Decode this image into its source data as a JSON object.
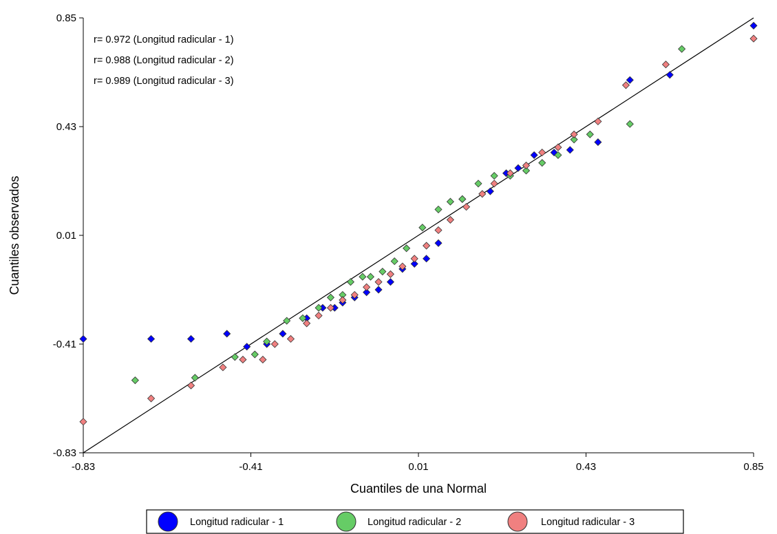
{
  "chart_data": {
    "type": "scatter",
    "xlabel": "Cuantiles de una Normal",
    "ylabel": "Cuantiles observados",
    "xlim": [
      -0.83,
      0.85
    ],
    "ylim": [
      -0.83,
      0.85
    ],
    "xticks": [
      "-0.83",
      "-0.41",
      "0.01",
      "0.43",
      "0.85"
    ],
    "yticks": [
      "-0.83",
      "-0.41",
      "0.01",
      "0.43",
      "0.85"
    ],
    "annotations": [
      "r= 0.972 (Longitud radicular - 1)",
      "r= 0.988 (Longitud radicular - 2)",
      "r= 0.989 (Longitud radicular - 3)"
    ],
    "legend_position": "bottom",
    "reference_line": {
      "x": [
        -0.83,
        0.85
      ],
      "y": [
        -0.83,
        0.85
      ],
      "color": "#000000"
    },
    "series": [
      {
        "name": "Longitud radicular - 1",
        "color": "#0000ff",
        "x": [
          -0.83,
          -0.66,
          -0.56,
          -0.47,
          -0.42,
          -0.37,
          -0.33,
          -0.27,
          -0.23,
          -0.2,
          -0.18,
          -0.15,
          -0.12,
          -0.09,
          -0.06,
          -0.03,
          0.0,
          0.03,
          0.06,
          0.12,
          0.19,
          0.23,
          0.26,
          0.3,
          0.35,
          0.39,
          0.46,
          0.54,
          0.64,
          0.85
        ],
        "y": [
          -0.39,
          -0.39,
          -0.39,
          -0.37,
          -0.42,
          -0.41,
          -0.37,
          -0.31,
          -0.27,
          -0.27,
          -0.25,
          -0.23,
          -0.21,
          -0.2,
          -0.17,
          -0.12,
          -0.1,
          -0.08,
          -0.02,
          0.15,
          0.18,
          0.25,
          0.27,
          0.32,
          0.33,
          0.34,
          0.37,
          0.61,
          0.63,
          0.82
        ]
      },
      {
        "name": "Longitud radicular - 2",
        "color": "#66cc66",
        "x": [
          -0.7,
          -0.55,
          -0.45,
          -0.4,
          -0.37,
          -0.32,
          -0.28,
          -0.24,
          -0.21,
          -0.18,
          -0.16,
          -0.13,
          -0.11,
          -0.08,
          -0.05,
          -0.02,
          0.02,
          0.06,
          0.09,
          0.12,
          0.16,
          0.2,
          0.24,
          0.28,
          0.32,
          0.36,
          0.4,
          0.44,
          0.54,
          0.67
        ],
        "y": [
          -0.55,
          -0.54,
          -0.46,
          -0.45,
          -0.4,
          -0.32,
          -0.31,
          -0.27,
          -0.23,
          -0.22,
          -0.17,
          -0.15,
          -0.15,
          -0.13,
          -0.09,
          -0.04,
          0.04,
          0.11,
          0.14,
          0.15,
          0.21,
          0.24,
          0.24,
          0.26,
          0.29,
          0.32,
          0.38,
          0.4,
          0.44,
          0.73
        ]
      },
      {
        "name": "Longitud radicular - 3",
        "color": "#f08080",
        "x": [
          -0.83,
          -0.66,
          -0.56,
          -0.48,
          -0.43,
          -0.38,
          -0.35,
          -0.31,
          -0.27,
          -0.24,
          -0.21,
          -0.18,
          -0.15,
          -0.12,
          -0.09,
          -0.06,
          -0.03,
          0.0,
          0.03,
          0.06,
          0.09,
          0.13,
          0.17,
          0.2,
          0.24,
          0.28,
          0.32,
          0.36,
          0.4,
          0.46,
          0.53,
          0.63,
          0.85
        ],
        "y": [
          -0.71,
          -0.62,
          -0.57,
          -0.5,
          -0.47,
          -0.47,
          -0.41,
          -0.39,
          -0.33,
          -0.3,
          -0.27,
          -0.24,
          -0.22,
          -0.19,
          -0.17,
          -0.14,
          -0.11,
          -0.08,
          -0.03,
          0.03,
          0.07,
          0.12,
          0.17,
          0.21,
          0.25,
          0.28,
          0.33,
          0.35,
          0.4,
          0.45,
          0.59,
          0.67,
          0.77
        ]
      }
    ]
  }
}
